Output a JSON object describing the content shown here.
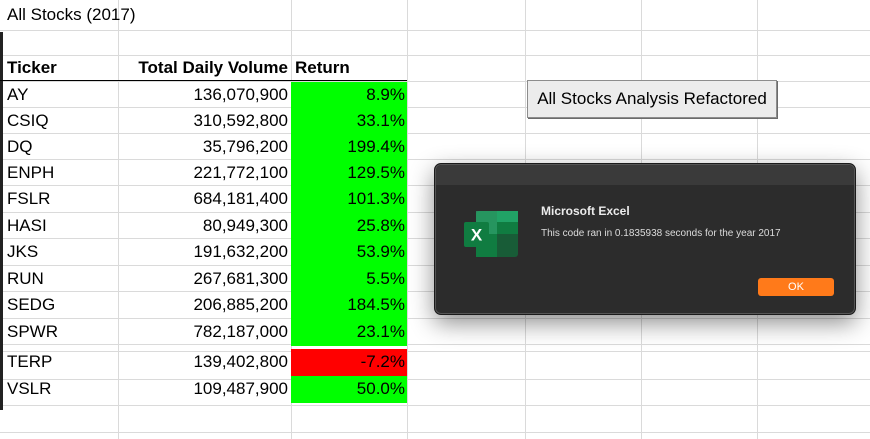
{
  "sheet": {
    "title": "All Stocks (2017)",
    "headers": {
      "ticker": "Ticker",
      "volume": "Total Daily Volume",
      "return": "Return"
    },
    "rows": [
      {
        "ticker": "AY",
        "volume": "136,070,900",
        "return": "8.9%",
        "status": "positive"
      },
      {
        "ticker": "CSIQ",
        "volume": "310,592,800",
        "return": "33.1%",
        "status": "positive"
      },
      {
        "ticker": "DQ",
        "volume": "35,796,200",
        "return": "199.4%",
        "status": "positive"
      },
      {
        "ticker": "ENPH",
        "volume": "221,772,100",
        "return": "129.5%",
        "status": "positive"
      },
      {
        "ticker": "FSLR",
        "volume": "684,181,400",
        "return": "101.3%",
        "status": "positive"
      },
      {
        "ticker": "HASI",
        "volume": "80,949,300",
        "return": "25.8%",
        "status": "positive"
      },
      {
        "ticker": "JKS",
        "volume": "191,632,200",
        "return": "53.9%",
        "status": "positive"
      },
      {
        "ticker": "RUN",
        "volume": "267,681,300",
        "return": "5.5%",
        "status": "positive"
      },
      {
        "ticker": "SEDG",
        "volume": "206,885,200",
        "return": "184.5%",
        "status": "positive"
      },
      {
        "ticker": "SPWR",
        "volume": "782,187,000",
        "return": "23.1%",
        "status": "positive"
      },
      {
        "ticker": "TERP",
        "volume": "139,402,800",
        "return": "-7.2%",
        "status": "negative"
      },
      {
        "ticker": "VSLR",
        "volume": "109,487,900",
        "return": "50.0%",
        "status": "positive"
      }
    ],
    "colors": {
      "positive": "#00ff00",
      "negative": "#ff0000"
    }
  },
  "macro_button": {
    "label": "All Stocks Analysis Refactored"
  },
  "dialog": {
    "title": "Microsoft Excel",
    "message": "This code ran in 0.1835938 seconds for the year 2017",
    "ok_label": "OK",
    "icon": "excel-icon",
    "icon_letter": "X",
    "accent": "#ff7a1a"
  }
}
